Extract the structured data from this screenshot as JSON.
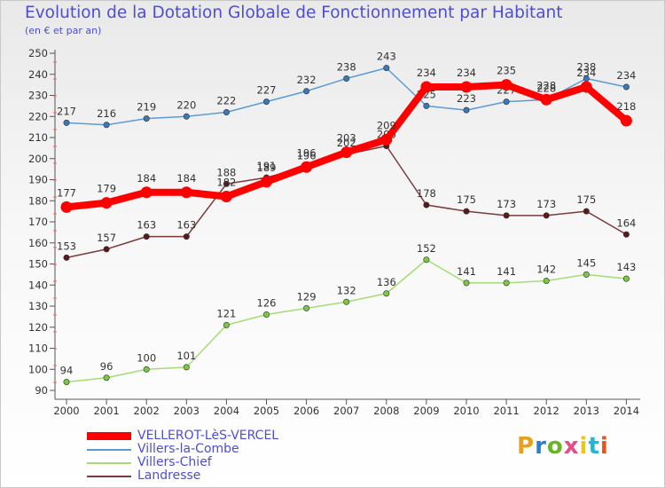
{
  "header": {
    "title": "Evolution de la Dotation Globale de Fonctionnement par Habitant",
    "subtitle": "(en € et par an)"
  },
  "brand": {
    "text": "Proxiti",
    "colors": [
      "#e8a21a",
      "#2a7fd4",
      "#6ab42a",
      "#e84a8a",
      "#e8c81a",
      "#2ab4d4",
      "#e8541a"
    ]
  },
  "chart_data": {
    "type": "line",
    "title": "Evolution de la Dotation Globale de Fonctionnement par Habitant",
    "subtitle": "(en € et par an)",
    "xlabel": "",
    "ylabel": "",
    "x": [
      "2000",
      "2001",
      "2002",
      "2003",
      "2004",
      "2005",
      "2006",
      "2007",
      "2008",
      "2009",
      "2010",
      "2011",
      "2012",
      "2013",
      "2014"
    ],
    "ylim": [
      90,
      250
    ],
    "yticks": [
      90,
      100,
      110,
      120,
      130,
      140,
      150,
      160,
      170,
      180,
      190,
      200,
      210,
      220,
      230,
      240,
      250
    ],
    "grid": false,
    "legend_position": "bottom-left",
    "series": [
      {
        "name": "Villers-la-Combe",
        "color": "#5b9bd5",
        "point_color": "#3a78b8",
        "values": [
          217,
          216,
          219,
          220,
          222,
          227,
          232,
          238,
          243,
          225,
          223,
          227,
          228,
          238,
          234
        ]
      },
      {
        "name": "Villers-Chief",
        "color": "#a6dc74",
        "point_color": "#7ac943",
        "values": [
          94,
          96,
          100,
          101,
          121,
          126,
          129,
          132,
          136,
          152,
          141,
          141,
          142,
          145,
          143
        ]
      },
      {
        "name": "Landresse",
        "color": "#7b3b3b",
        "point_color": "#5a1a1a",
        "values": [
          153,
          157,
          163,
          163,
          188,
          191,
          196,
          202,
          206,
          178,
          175,
          173,
          173,
          175,
          164
        ]
      },
      {
        "name": "VELLEROT-LèS-VERCEL",
        "color": "#ff0000",
        "point_color": "#ff0000",
        "thick": true,
        "values": [
          177,
          179,
          184,
          184,
          182,
          189,
          196,
          203,
          209,
          234,
          234,
          235,
          228,
          234,
          218
        ]
      }
    ]
  },
  "legend": {
    "items": [
      {
        "label": "VELLEROT-LèS-VERCEL",
        "color": "#ff0000"
      },
      {
        "label": "Villers-la-Combe",
        "color": "#5b9bd5"
      },
      {
        "label": "Villers-Chief",
        "color": "#a6dc74"
      },
      {
        "label": "Landresse",
        "color": "#7b3b3b"
      }
    ]
  }
}
